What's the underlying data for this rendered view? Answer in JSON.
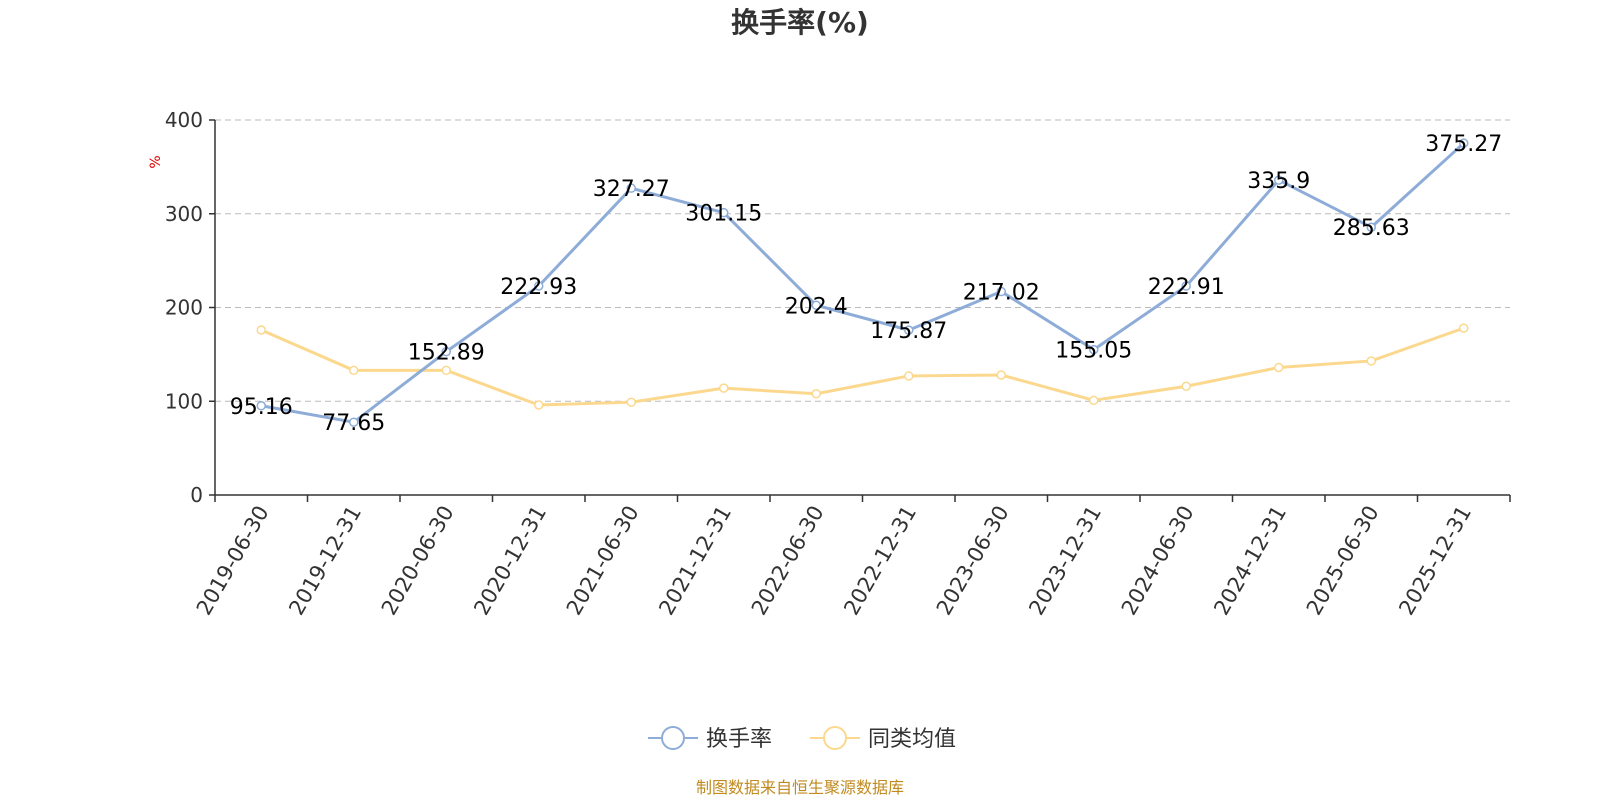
{
  "chart_data": {
    "type": "line",
    "title": "换手率(%)",
    "ylabel": "%",
    "ylim": [
      0,
      400
    ],
    "yticks": [
      0,
      100,
      200,
      300,
      400
    ],
    "grid": true,
    "legend_position": "bottom",
    "categories": [
      "2019-06-30",
      "2019-12-31",
      "2020-06-30",
      "2020-12-31",
      "2021-06-30",
      "2021-12-31",
      "2022-06-30",
      "2022-12-31",
      "2023-06-30",
      "2023-12-31",
      "2024-06-30",
      "2024-12-31",
      "2025-06-30",
      "2025-12-31"
    ],
    "series": [
      {
        "name": "换手率",
        "color": "#8eacd8",
        "show_labels": true,
        "values": [
          95.16,
          77.65,
          152.89,
          222.93,
          327.27,
          301.15,
          202.4,
          175.87,
          217.02,
          155.05,
          222.91,
          335.9,
          285.63,
          375.27
        ]
      },
      {
        "name": "同类均值",
        "color": "#fbd88d",
        "show_labels": false,
        "values": [
          176,
          133,
          133,
          96,
          99,
          114,
          108,
          127,
          128,
          101,
          116,
          136,
          143,
          178
        ]
      }
    ],
    "source": "制图数据来自恒生聚源数据库"
  }
}
